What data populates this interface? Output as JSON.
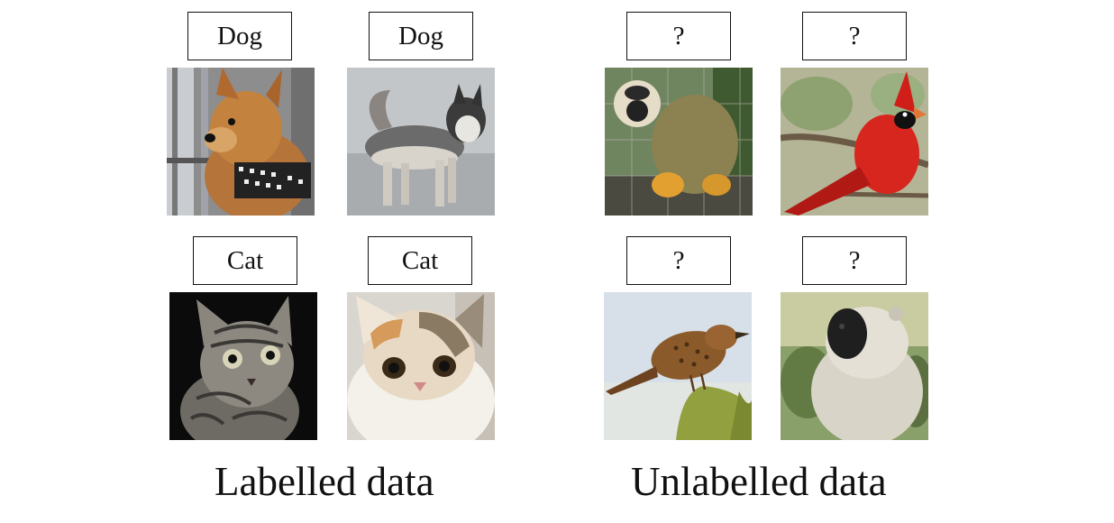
{
  "labelled": {
    "caption": "Labelled data",
    "items": [
      {
        "label": "Dog",
        "image": "dog-1"
      },
      {
        "label": "Dog",
        "image": "dog-2"
      },
      {
        "label": "Cat",
        "image": "cat-1"
      },
      {
        "label": "Cat",
        "image": "cat-2"
      }
    ]
  },
  "unlabelled": {
    "caption": "Unlabelled data",
    "items": [
      {
        "label": "?",
        "image": "monkey-1"
      },
      {
        "label": "?",
        "image": "cardinal"
      },
      {
        "label": "?",
        "image": "wren"
      },
      {
        "label": "?",
        "image": "monkey-2"
      }
    ]
  }
}
